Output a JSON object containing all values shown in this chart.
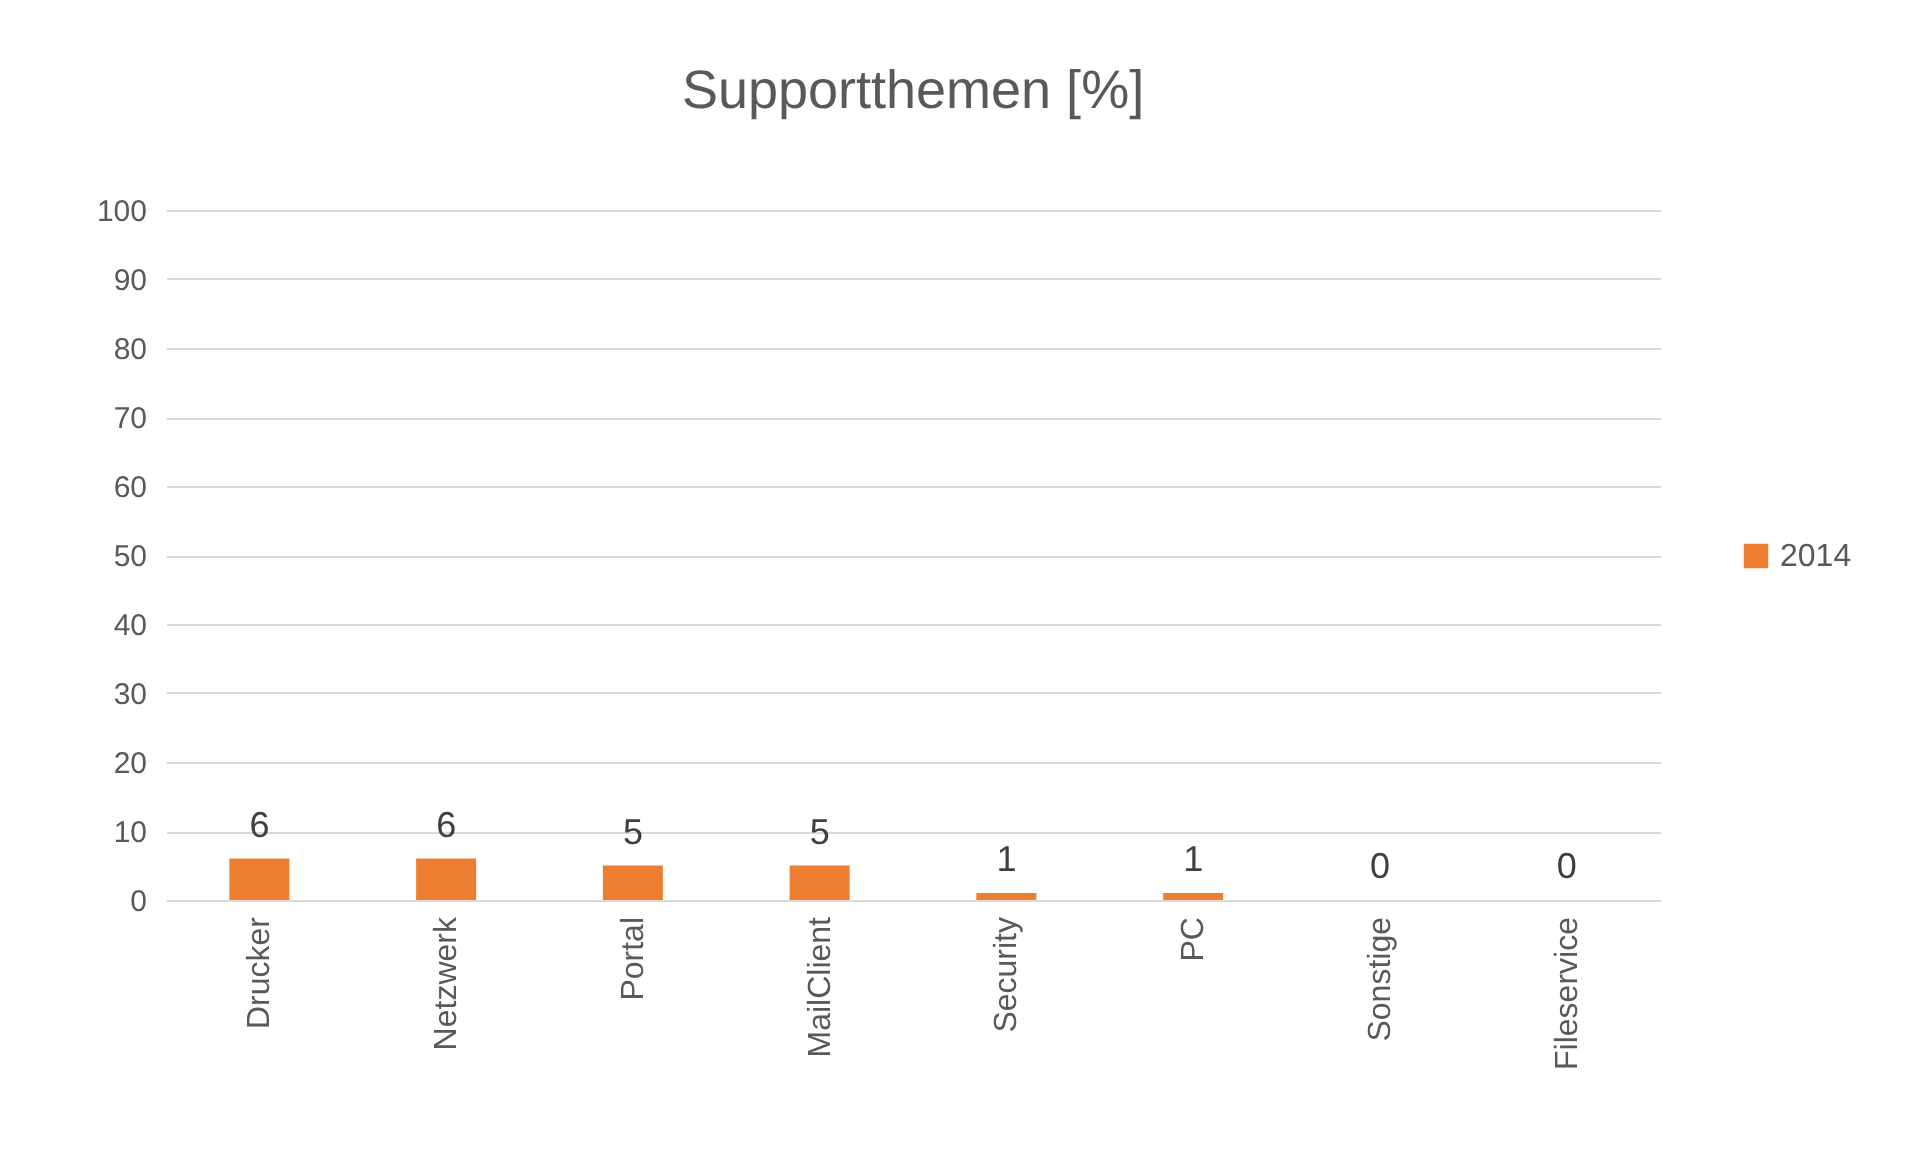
{
  "chart_data": {
    "type": "bar",
    "title": "Supportthemen [%]",
    "categories": [
      "Drucker",
      "Netzwerk",
      "Portal",
      "MailClient",
      "Security",
      "PC",
      "Sonstige",
      "Fileservice"
    ],
    "series": [
      {
        "name": "2014",
        "color": "#ed7d31",
        "values": [
          6,
          6,
          5,
          5,
          1,
          1,
          0,
          0
        ]
      }
    ],
    "ylim": [
      0,
      100
    ],
    "yticks": [
      0,
      10,
      20,
      30,
      40,
      50,
      60,
      70,
      80,
      90,
      100
    ],
    "grid": "y",
    "legend": "right",
    "data_labels": true
  }
}
